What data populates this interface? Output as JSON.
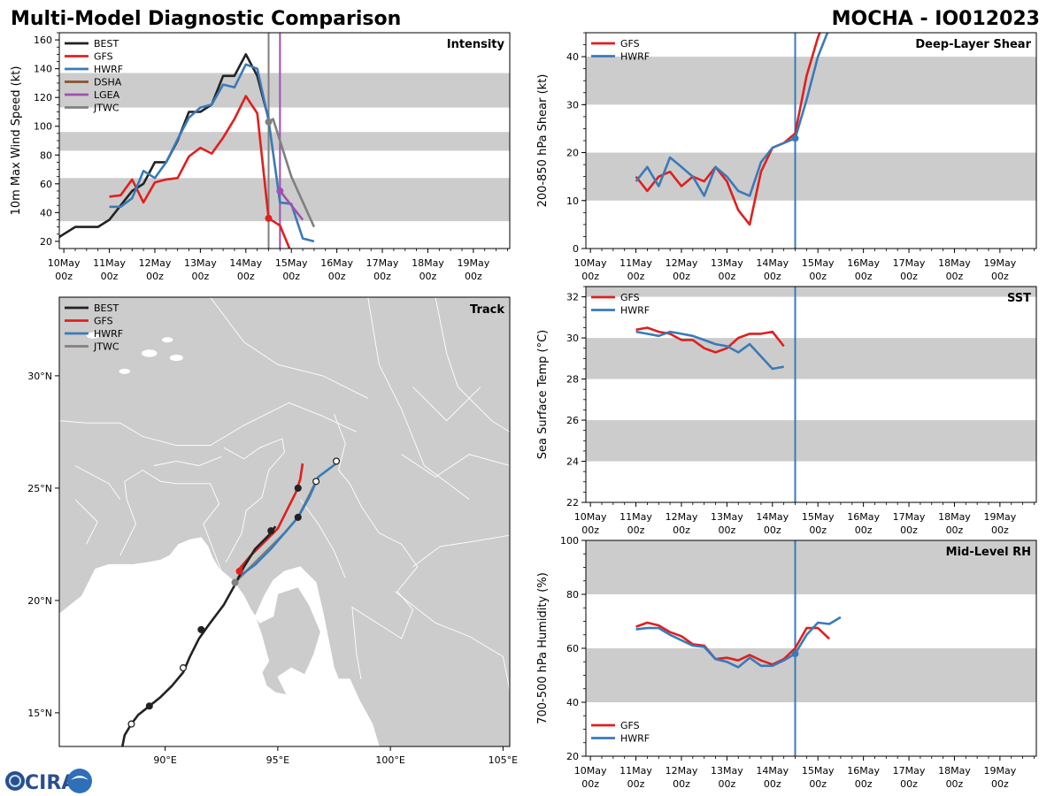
{
  "header": {
    "title": "Multi-Model Diagnostic Comparison",
    "storm": "MOCHA - IO012023"
  },
  "logo": {
    "text": "CIRA"
  },
  "colors": {
    "BEST": "#222222",
    "GFS": "#e01f1f",
    "HWRF": "#3a7ab8",
    "DSHA": "#8b5230",
    "LGEA": "#a04fb2",
    "JTWC": "#808080",
    "band": "#cccccc",
    "land": "#cccccc",
    "vline": "#3a7ab8"
  },
  "time_axis": {
    "ticks": [
      0,
      1,
      2,
      3,
      4,
      5,
      6,
      7,
      8,
      9
    ],
    "labels": [
      "10May",
      "11May",
      "12May",
      "13May",
      "14May",
      "15May",
      "16May",
      "17May",
      "18May",
      "19May"
    ],
    "sublabel": "00z",
    "xlim": [
      -0.1,
      9.8
    ]
  },
  "chart_data": [
    {
      "id": "intensity",
      "type": "line",
      "title": "Intensity",
      "ylabel": "10m Max Wind Speed (kt)",
      "ylim": [
        15,
        165
      ],
      "yticks": [
        20,
        40,
        60,
        80,
        100,
        120,
        140,
        160
      ],
      "bands": [
        [
          34,
          64
        ],
        [
          83,
          96
        ],
        [
          113,
          137
        ]
      ],
      "vlines": [
        {
          "x": 4.5,
          "color": "JTWC"
        },
        {
          "x": 4.75,
          "color": "LGEA"
        }
      ],
      "legend": [
        "BEST",
        "GFS",
        "HWRF",
        "DSHA",
        "LGEA",
        "JTWC"
      ],
      "series": [
        {
          "name": "BEST",
          "x": [
            -0.25,
            0,
            0.25,
            0.5,
            0.75,
            1.0,
            1.25,
            1.5,
            1.75,
            2.0,
            2.25,
            2.5,
            2.75,
            3.0,
            3.25,
            3.5,
            3.75,
            4.0,
            4.25,
            4.5
          ],
          "y": [
            20,
            25,
            30,
            30,
            30,
            35,
            45,
            55,
            60,
            75,
            75,
            90,
            110,
            110,
            115,
            135,
            135,
            150,
            135,
            105
          ]
        },
        {
          "name": "GFS",
          "x": [
            1.0,
            1.25,
            1.5,
            1.75,
            2.0,
            2.25,
            2.5,
            2.75,
            3.0,
            3.25,
            3.5,
            3.75,
            4.0,
            4.25,
            4.5,
            4.75,
            5.0
          ],
          "y": [
            51,
            52,
            63,
            47,
            61,
            63,
            64,
            79,
            85,
            81,
            92,
            105,
            121,
            109,
            36,
            31,
            12
          ]
        },
        {
          "name": "HWRF",
          "x": [
            1.0,
            1.25,
            1.5,
            1.75,
            2.0,
            2.25,
            2.5,
            2.75,
            3.0,
            3.25,
            3.5,
            3.75,
            4.0,
            4.25,
            4.5,
            4.75,
            5.0,
            5.25,
            5.5
          ],
          "y": [
            44,
            44,
            50,
            69,
            64,
            75,
            91,
            106,
            113,
            115,
            129,
            127,
            143,
            140,
            104,
            47,
            46,
            22,
            20
          ]
        },
        {
          "name": "LGEA",
          "x": [
            4.75,
            5.0,
            5.25
          ],
          "y": [
            55,
            45,
            35
          ]
        },
        {
          "name": "JTWC",
          "x": [
            4.5,
            4.6,
            5.0,
            5.5
          ],
          "y": [
            103,
            105,
            65,
            30
          ]
        }
      ],
      "markers": [
        {
          "series": "GFS",
          "x": 4.5,
          "y": 36
        },
        {
          "series": "LGEA",
          "x": 4.75,
          "y": 55
        },
        {
          "series": "JTWC",
          "x": 4.5,
          "y": 103
        }
      ]
    },
    {
      "id": "shear",
      "type": "line",
      "title": "Deep-Layer Shear",
      "ylabel": "200-850 hPa Shear (kt)",
      "ylim": [
        0,
        45
      ],
      "yticks": [
        0,
        10,
        20,
        30,
        40
      ],
      "bands": [
        [
          10,
          20
        ],
        [
          30,
          40
        ]
      ],
      "vlines": [
        {
          "x": 4.5,
          "color": "vline"
        }
      ],
      "legend": [
        "GFS",
        "HWRF"
      ],
      "series": [
        {
          "name": "GFS",
          "x": [
            1.0,
            1.25,
            1.5,
            1.75,
            2.0,
            2.25,
            2.5,
            2.75,
            3.0,
            3.25,
            3.5,
            3.75,
            4.0,
            4.25,
            4.5,
            4.75,
            5.0,
            5.25
          ],
          "y": [
            15,
            12,
            15,
            16,
            13,
            15,
            14,
            17,
            14,
            8,
            5,
            16,
            21,
            22,
            24,
            36,
            44,
            50
          ]
        },
        {
          "name": "HWRF",
          "x": [
            1.0,
            1.25,
            1.5,
            1.75,
            2.0,
            2.25,
            2.5,
            2.75,
            3.0,
            3.25,
            3.5,
            3.75,
            4.0,
            4.25,
            4.5,
            4.75,
            5.0,
            5.25
          ],
          "y": [
            14,
            17,
            13,
            19,
            17,
            15,
            11,
            17,
            15,
            12,
            11,
            18,
            21,
            22,
            23,
            31,
            40,
            46
          ]
        }
      ],
      "markers": [
        {
          "series": "HWRF",
          "x": 4.5,
          "y": 23
        }
      ]
    },
    {
      "id": "sst",
      "type": "line",
      "title": "SST",
      "ylabel": "Sea Surface Temp (°C)",
      "ylim": [
        22,
        32.5
      ],
      "yticks": [
        22,
        24,
        26,
        28,
        30,
        32
      ],
      "bands": [
        [
          24,
          26
        ],
        [
          28,
          30
        ],
        [
          32,
          34
        ]
      ],
      "vlines": [
        {
          "x": 4.5,
          "color": "vline"
        }
      ],
      "legend": [
        "GFS",
        "HWRF"
      ],
      "series": [
        {
          "name": "GFS",
          "x": [
            1.0,
            1.25,
            1.5,
            1.75,
            2.0,
            2.25,
            2.5,
            2.75,
            3.0,
            3.25,
            3.5,
            3.75,
            4.0,
            4.25
          ],
          "y": [
            30.4,
            30.5,
            30.3,
            30.2,
            29.9,
            29.9,
            29.5,
            29.3,
            29.5,
            30.0,
            30.2,
            30.2,
            30.3,
            29.6
          ]
        },
        {
          "name": "HWRF",
          "x": [
            1.0,
            1.25,
            1.5,
            1.75,
            2.0,
            2.25,
            2.5,
            2.75,
            3.0,
            3.25,
            3.5,
            3.75,
            4.0,
            4.25
          ],
          "y": [
            30.3,
            30.2,
            30.1,
            30.3,
            30.2,
            30.1,
            29.9,
            29.7,
            29.6,
            29.3,
            29.7,
            29.1,
            28.5,
            28.6
          ]
        }
      ],
      "markers": []
    },
    {
      "id": "rh",
      "type": "line",
      "title": "Mid-Level RH",
      "ylabel": "700-500 hPa Humidity (%)",
      "ylim": [
        20,
        100
      ],
      "yticks": [
        20,
        40,
        60,
        80,
        100
      ],
      "bands": [
        [
          40,
          60
        ],
        [
          80,
          100
        ]
      ],
      "vlines": [
        {
          "x": 4.5,
          "color": "vline"
        }
      ],
      "legend": [
        "GFS",
        "HWRF"
      ],
      "series": [
        {
          "name": "GFS",
          "x": [
            1.0,
            1.25,
            1.5,
            1.75,
            2.0,
            2.25,
            2.5,
            2.75,
            3.0,
            3.25,
            3.5,
            3.75,
            4.0,
            4.25,
            4.5,
            4.75,
            5.0,
            5.25
          ],
          "y": [
            68,
            69.5,
            68.5,
            66,
            64.5,
            61.5,
            61,
            56,
            56.5,
            55.5,
            57.5,
            55.5,
            54,
            56,
            60,
            67.5,
            67.5,
            63.5
          ]
        },
        {
          "name": "HWRF",
          "x": [
            1.0,
            1.25,
            1.5,
            1.75,
            2.0,
            2.25,
            2.5,
            2.75,
            3.0,
            3.25,
            3.5,
            3.75,
            4.0,
            4.25,
            4.5,
            4.75,
            5.0,
            5.25,
            5.5
          ],
          "y": [
            67,
            67.5,
            67.5,
            65,
            63,
            61,
            60.5,
            56,
            55,
            53,
            56.5,
            53.5,
            53.5,
            55.5,
            58,
            65,
            69.5,
            69,
            71.5
          ]
        }
      ],
      "markers": [
        {
          "series": "HWRF",
          "x": 4.5,
          "y": 58
        }
      ]
    },
    {
      "id": "track",
      "type": "scatter",
      "title": "Track",
      "xlim": [
        85.3,
        105.3
      ],
      "ylim": [
        13.5,
        33.5
      ],
      "xticks": [
        90,
        95,
        100,
        105
      ],
      "xticklabels": [
        "90°E",
        "95°E",
        "100°E",
        "105°E"
      ],
      "yticks": [
        15,
        20,
        25,
        30
      ],
      "yticklabels": [
        "15°N",
        "20°N",
        "25°N",
        "30°N"
      ],
      "legend": [
        "BEST",
        "GFS",
        "HWRF",
        "JTWC"
      ],
      "series": [
        {
          "name": "BEST",
          "lon": [
            88.1,
            88.2,
            88.5,
            88.8,
            89.3,
            89.8,
            90.3,
            90.8,
            91.1,
            91.5,
            92.0,
            92.6,
            93.1,
            93.5,
            94.0,
            94.6,
            94.9
          ],
          "lat": [
            13.5,
            14.0,
            14.5,
            14.9,
            15.3,
            15.7,
            16.2,
            16.8,
            17.5,
            18.3,
            19.0,
            19.8,
            20.7,
            21.5,
            22.3,
            22.9,
            23.3
          ]
        },
        {
          "name": "GFS",
          "lon": [
            93.2,
            93.8,
            94.4,
            95.0,
            95.4,
            95.8,
            96.0,
            96.1
          ],
          "lat": [
            21.3,
            22.0,
            22.6,
            23.2,
            24.0,
            24.8,
            25.4,
            26.1
          ]
        },
        {
          "name": "HWRF",
          "lon": [
            93.2,
            94.0,
            94.7,
            95.3,
            95.9,
            96.4,
            96.8,
            97.2,
            97.6
          ],
          "lat": [
            21.0,
            21.6,
            22.3,
            23.0,
            23.7,
            24.6,
            25.5,
            25.8,
            26.1
          ]
        },
        {
          "name": "JTWC",
          "lon": [
            93.1,
            94.0,
            94.7,
            95.3,
            95.9,
            96.7
          ],
          "lat": [
            20.8,
            21.7,
            22.4,
            23.0,
            23.7,
            25.3
          ]
        }
      ],
      "markers": [
        {
          "series": "BEST",
          "lon": 88.5,
          "lat": 14.5,
          "filled": false
        },
        {
          "series": "BEST",
          "lon": 89.3,
          "lat": 15.3,
          "filled": true
        },
        {
          "series": "BEST",
          "lon": 90.8,
          "lat": 17.0,
          "filled": false
        },
        {
          "series": "BEST",
          "lon": 91.6,
          "lat": 18.7,
          "filled": true
        },
        {
          "series": "BEST",
          "lon": 94.7,
          "lat": 23.1,
          "filled": true
        },
        {
          "series": "BEST",
          "lon": 95.9,
          "lat": 23.7,
          "filled": true
        },
        {
          "series": "BEST",
          "lon": 95.9,
          "lat": 25.0,
          "filled": true
        },
        {
          "series": "BEST",
          "lon": 96.7,
          "lat": 25.3,
          "filled": false
        },
        {
          "series": "BEST",
          "lon": 97.6,
          "lat": 26.2,
          "filled": false
        },
        {
          "series": "GFS",
          "lon": 93.3,
          "lat": 21.3,
          "filled": true
        },
        {
          "series": "JTWC",
          "lon": 93.1,
          "lat": 20.8,
          "filled": true
        }
      ]
    }
  ]
}
